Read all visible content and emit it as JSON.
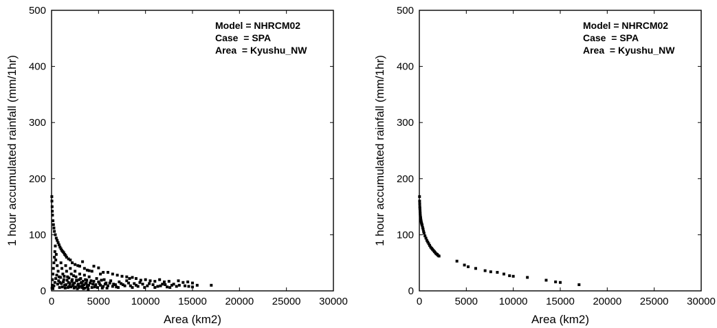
{
  "chart_data": [
    {
      "type": "scatter",
      "xlabel": "Area (km2)",
      "ylabel": "1 hour accumulated rainfall (mm/1hr)",
      "xlim": [
        0,
        30000
      ],
      "ylim": [
        0,
        500
      ],
      "xticks": [
        0,
        5000,
        10000,
        15000,
        20000,
        25000,
        30000
      ],
      "xtick_labels": [
        "0",
        "5000",
        "10000",
        "15000",
        "20000",
        "25000",
        "30000"
      ],
      "yticks": [
        0,
        100,
        200,
        300,
        400,
        500
      ],
      "ytick_labels": [
        "0",
        "100",
        "200",
        "300",
        "400",
        "500"
      ],
      "annotations": [
        "Model = NHRCM02",
        "Case  = SPA",
        "Area  = Kyushu_NW"
      ],
      "grid": false,
      "points": [
        [
          30,
          168
        ],
        [
          40,
          160
        ],
        [
          60,
          150
        ],
        [
          80,
          142
        ],
        [
          100,
          135
        ],
        [
          150,
          125
        ],
        [
          200,
          118
        ],
        [
          250,
          112
        ],
        [
          300,
          106
        ],
        [
          400,
          100
        ],
        [
          500,
          94
        ],
        [
          600,
          90
        ],
        [
          700,
          86
        ],
        [
          800,
          82
        ],
        [
          900,
          78
        ],
        [
          1000,
          75
        ],
        [
          1100,
          72
        ],
        [
          1200,
          70
        ],
        [
          1300,
          68
        ],
        [
          1400,
          65
        ],
        [
          1500,
          63
        ],
        [
          1600,
          60
        ],
        [
          1800,
          57
        ],
        [
          2000,
          55
        ],
        [
          2200,
          50
        ],
        [
          2500,
          47
        ],
        [
          2800,
          45
        ],
        [
          3000,
          44
        ],
        [
          3300,
          52
        ],
        [
          3500,
          40
        ],
        [
          3800,
          37
        ],
        [
          4000,
          36
        ],
        [
          4300,
          35
        ],
        [
          4500,
          44
        ],
        [
          5000,
          41
        ],
        [
          5200,
          30
        ],
        [
          5500,
          33
        ],
        [
          6000,
          33
        ],
        [
          6500,
          30
        ],
        [
          7000,
          28
        ],
        [
          7500,
          26
        ],
        [
          8000,
          25
        ],
        [
          8300,
          22
        ],
        [
          8600,
          24
        ],
        [
          9000,
          22
        ],
        [
          9500,
          19
        ],
        [
          10000,
          20
        ],
        [
          10500,
          18
        ],
        [
          11000,
          17
        ],
        [
          11500,
          20
        ],
        [
          12000,
          16
        ],
        [
          12500,
          17
        ],
        [
          13000,
          12
        ],
        [
          13500,
          18
        ],
        [
          14000,
          15
        ],
        [
          14500,
          16
        ],
        [
          15000,
          14
        ],
        [
          15500,
          10
        ],
        [
          17000,
          10
        ],
        [
          50,
          5
        ],
        [
          80,
          10
        ],
        [
          100,
          20
        ],
        [
          150,
          30
        ],
        [
          200,
          40
        ],
        [
          250,
          50
        ],
        [
          300,
          60
        ],
        [
          350,
          70
        ],
        [
          400,
          80
        ],
        [
          450,
          55
        ],
        [
          500,
          65
        ],
        [
          600,
          45
        ],
        [
          700,
          35
        ],
        [
          800,
          25
        ],
        [
          900,
          15
        ],
        [
          1000,
          50
        ],
        [
          1100,
          40
        ],
        [
          1200,
          30
        ],
        [
          1300,
          20
        ],
        [
          1400,
          10
        ],
        [
          1500,
          45
        ],
        [
          1600,
          35
        ],
        [
          1700,
          25
        ],
        [
          1800,
          15
        ],
        [
          1900,
          8
        ],
        [
          2000,
          40
        ],
        [
          2100,
          30
        ],
        [
          2200,
          20
        ],
        [
          2300,
          12
        ],
        [
          2400,
          5
        ],
        [
          2500,
          35
        ],
        [
          2600,
          25
        ],
        [
          2700,
          18
        ],
        [
          2800,
          10
        ],
        [
          2900,
          6
        ],
        [
          3000,
          30
        ],
        [
          3100,
          22
        ],
        [
          3200,
          15
        ],
        [
          3300,
          9
        ],
        [
          3400,
          4
        ],
        [
          3500,
          28
        ],
        [
          3600,
          20
        ],
        [
          3700,
          14
        ],
        [
          3800,
          8
        ],
        [
          3900,
          3
        ],
        [
          4000,
          25
        ],
        [
          4200,
          18
        ],
        [
          4400,
          12
        ],
        [
          4600,
          7
        ],
        [
          4800,
          22
        ],
        [
          5000,
          16
        ],
        [
          5200,
          10
        ],
        [
          5400,
          5
        ],
        [
          5600,
          20
        ],
        [
          5800,
          14
        ],
        [
          6000,
          9
        ],
        [
          6300,
          18
        ],
        [
          6600,
          12
        ],
        [
          6900,
          7
        ],
        [
          7200,
          16
        ],
        [
          7600,
          11
        ],
        [
          8000,
          18
        ],
        [
          8400,
          9
        ],
        [
          8800,
          13
        ],
        [
          9200,
          8
        ],
        [
          9700,
          12
        ],
        [
          10200,
          9
        ],
        [
          10800,
          11
        ],
        [
          11300,
          8
        ],
        [
          11800,
          12
        ],
        [
          12300,
          7
        ],
        [
          12800,
          10
        ],
        [
          13300,
          8
        ],
        [
          14200,
          9
        ],
        [
          15000,
          7
        ],
        [
          150,
          4
        ],
        [
          250,
          9
        ],
        [
          350,
          15
        ],
        [
          450,
          22
        ],
        [
          550,
          28
        ],
        [
          650,
          12
        ],
        [
          750,
          18
        ],
        [
          850,
          6
        ],
        [
          950,
          24
        ],
        [
          1050,
          13
        ],
        [
          1150,
          7
        ],
        [
          1250,
          16
        ],
        [
          1350,
          26
        ],
        [
          1450,
          5
        ],
        [
          1550,
          11
        ],
        [
          1650,
          19
        ],
        [
          1750,
          6
        ],
        [
          1850,
          23
        ],
        [
          1950,
          13
        ],
        [
          2050,
          7
        ],
        [
          2150,
          17
        ],
        [
          2250,
          9
        ],
        [
          2350,
          27
        ],
        [
          2450,
          14
        ],
        [
          2550,
          7
        ],
        [
          2650,
          19
        ],
        [
          2750,
          4
        ],
        [
          2850,
          12
        ],
        [
          2950,
          20
        ],
        [
          3050,
          8
        ],
        [
          3150,
          14
        ],
        [
          3250,
          6
        ],
        [
          3350,
          17
        ],
        [
          3450,
          11
        ],
        [
          3550,
          5
        ],
        [
          3650,
          13
        ],
        [
          3750,
          19
        ],
        [
          3850,
          7
        ],
        [
          3950,
          10
        ],
        [
          4100,
          14
        ],
        [
          4300,
          6
        ],
        [
          4500,
          17
        ],
        [
          4700,
          11
        ],
        [
          4900,
          6
        ],
        [
          5100,
          13
        ],
        [
          5300,
          19
        ],
        [
          5500,
          8
        ],
        [
          5700,
          12
        ],
        [
          5900,
          5
        ],
        [
          6200,
          14
        ],
        [
          6500,
          8
        ],
        [
          6800,
          11
        ],
        [
          7100,
          6
        ],
        [
          7400,
          13
        ],
        [
          7800,
          9
        ],
        [
          8200,
          14
        ],
        [
          8600,
          6
        ],
        [
          9000,
          10
        ],
        [
          9400,
          15
        ],
        [
          9900,
          6
        ],
        [
          10400,
          13
        ],
        [
          11000,
          6
        ],
        [
          11600,
          9
        ],
        [
          12100,
          11
        ],
        [
          12600,
          6
        ],
        [
          13600,
          10
        ],
        [
          14600,
          8
        ]
      ]
    },
    {
      "type": "scatter",
      "xlabel": "Area (km2)",
      "ylabel": "1 hour accumulated rainfall (mm/1hr)",
      "xlim": [
        0,
        30000
      ],
      "ylim": [
        0,
        500
      ],
      "xticks": [
        0,
        5000,
        10000,
        15000,
        20000,
        25000,
        30000
      ],
      "xtick_labels": [
        "0",
        "5000",
        "10000",
        "15000",
        "20000",
        "25000",
        "30000"
      ],
      "yticks": [
        0,
        100,
        200,
        300,
        400,
        500
      ],
      "ytick_labels": [
        "0",
        "100",
        "200",
        "300",
        "400",
        "500"
      ],
      "annotations": [
        "Model = NHRCM02",
        "Case  = SPA",
        "Area  = Kyushu_NW"
      ],
      "grid": false,
      "points": [
        [
          20,
          168
        ],
        [
          30,
          160
        ],
        [
          40,
          155
        ],
        [
          50,
          150
        ],
        [
          60,
          147
        ],
        [
          70,
          144
        ],
        [
          80,
          141
        ],
        [
          90,
          138
        ],
        [
          100,
          135
        ],
        [
          120,
          132
        ],
        [
          140,
          130
        ],
        [
          160,
          127
        ],
        [
          180,
          125
        ],
        [
          200,
          123
        ],
        [
          230,
          121
        ],
        [
          260,
          119
        ],
        [
          300,
          117
        ],
        [
          350,
          113
        ],
        [
          400,
          110
        ],
        [
          450,
          106
        ],
        [
          500,
          103
        ],
        [
          600,
          98
        ],
        [
          700,
          94
        ],
        [
          800,
          90
        ],
        [
          900,
          87
        ],
        [
          1000,
          84
        ],
        [
          1100,
          81
        ],
        [
          1200,
          78
        ],
        [
          1300,
          76
        ],
        [
          1400,
          74
        ],
        [
          1500,
          72
        ],
        [
          1600,
          70
        ],
        [
          1700,
          68
        ],
        [
          1800,
          66
        ],
        [
          1900,
          65
        ],
        [
          2000,
          63
        ],
        [
          2100,
          62
        ],
        [
          4000,
          53
        ],
        [
          4800,
          46
        ],
        [
          5200,
          43
        ],
        [
          6000,
          40
        ],
        [
          7000,
          36
        ],
        [
          7600,
          34
        ],
        [
          8300,
          33
        ],
        [
          9000,
          30
        ],
        [
          9600,
          27
        ],
        [
          10000,
          26
        ],
        [
          11500,
          24
        ],
        [
          13500,
          19
        ],
        [
          14500,
          16
        ],
        [
          15000,
          15
        ],
        [
          17000,
          11
        ]
      ]
    }
  ]
}
